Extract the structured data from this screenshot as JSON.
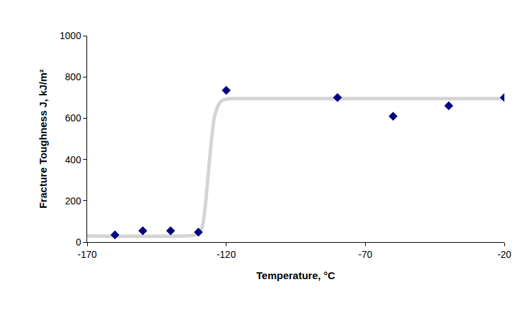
{
  "chart_data": {
    "type": "scatter",
    "x_label": "Temperature, °C",
    "y_label": "Fracture Toughness J, kJ/m²",
    "xlim": [
      -170,
      -20
    ],
    "xticks": [
      -170,
      -120,
      -70,
      -20
    ],
    "ylim": [
      0,
      1000
    ],
    "yticks": [
      0,
      200,
      400,
      600,
      800,
      1000
    ],
    "grid": false,
    "series": [
      {
        "type": "line",
        "color": "#d4d4d4",
        "line_style": "solid",
        "x": [
          -170,
          -135,
          -131,
          -129,
          -128,
          -127,
          -126,
          -125,
          -124,
          -122,
          -120,
          -115,
          -20
        ],
        "values": [
          30,
          30,
          35,
          60,
          120,
          250,
          400,
          530,
          620,
          680,
          693,
          695,
          695
        ]
      },
      {
        "type": "scatter",
        "color": "#000080",
        "marker": "diamond",
        "x": [
          -160,
          -150,
          -140,
          -130,
          -120,
          -80,
          -60,
          -40,
          -20
        ],
        "values": [
          35,
          55,
          55,
          48,
          735,
          700,
          610,
          660,
          700
        ]
      }
    ]
  }
}
